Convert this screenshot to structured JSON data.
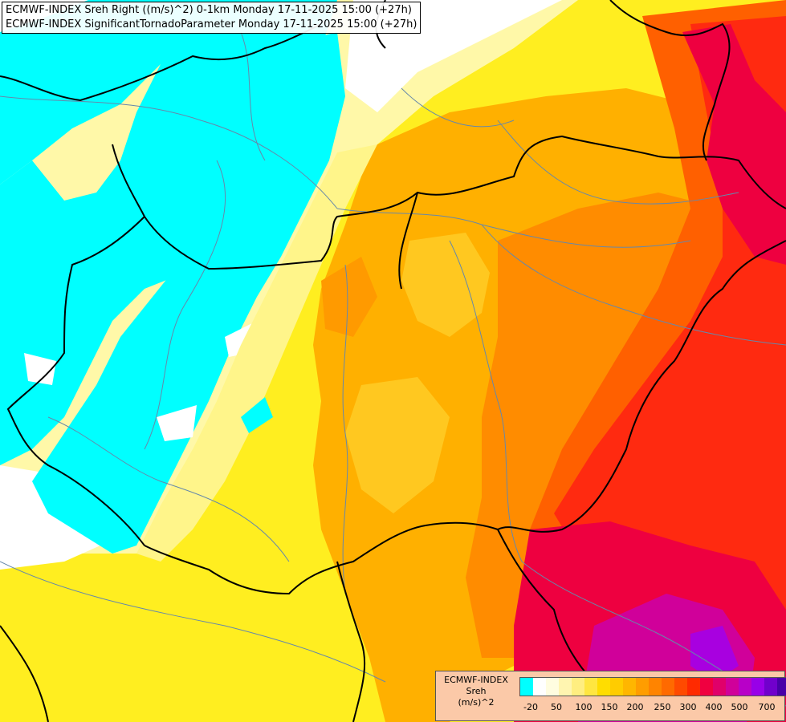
{
  "header": {
    "line1": "ECMWF-INDEX Sreh Right ((m/s)^2) 0-1km Monday 17-11-2025 15:00 (+27h)",
    "line2": "ECMWF-INDEX SignificantTornadoParameter Monday 17-11-2025 15:00 (+27h)"
  },
  "legend": {
    "title_model": "ECMWF-INDEX",
    "title_variable": "Sreh",
    "title_unit": "(m/s)^2",
    "colors": [
      "#00ffff",
      "#ffffff",
      "#fffde0",
      "#fff5b0",
      "#ffee80",
      "#ffe640",
      "#ffdd00",
      "#ffcc00",
      "#ffb600",
      "#ff9d00",
      "#ff8400",
      "#ff6a00",
      "#ff4a00",
      "#ff2a00",
      "#f00040",
      "#e0006a",
      "#d0009a",
      "#b800c8",
      "#9800e8",
      "#7000cc",
      "#4800a8",
      "#2a0088",
      "#000080"
    ],
    "labels": [
      "-20",
      "50",
      "100",
      "150",
      "200",
      "250",
      "300",
      "400",
      "500",
      "700"
    ]
  }
}
